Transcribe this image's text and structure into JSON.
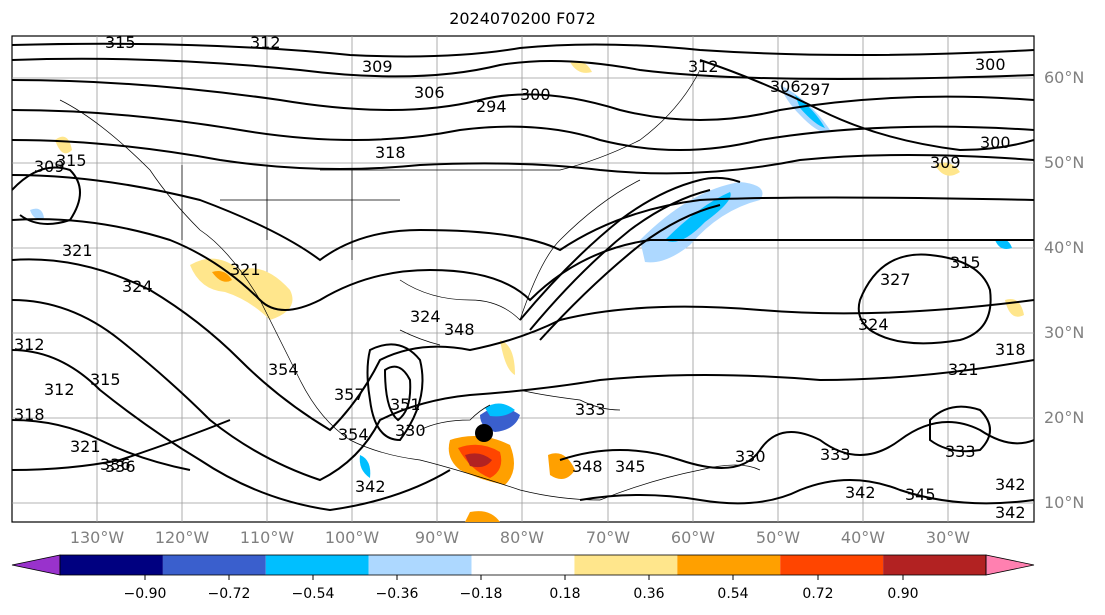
{
  "title": "2024070200 F072",
  "lat_labels": [
    "60°N",
    "50°N",
    "40°N",
    "30°N",
    "20°N",
    "10°N"
  ],
  "lon_labels": [
    "130°W",
    "120°W",
    "110°W",
    "100°W",
    "90°W",
    "80°W",
    "70°W",
    "60°W",
    "50°W",
    "40°W",
    "30°W"
  ],
  "contour_labels": [
    "315",
    "312",
    "309",
    "306",
    "294",
    "300",
    "312",
    "306",
    "297",
    "300",
    "309",
    "300",
    "309",
    "315",
    "318",
    "321",
    "324",
    "321",
    "324",
    "348",
    "354",
    "357",
    "351",
    "354",
    "333",
    "330",
    "336",
    "342",
    "345",
    "348",
    "330",
    "333",
    "342",
    "345",
    "333",
    "342",
    "327",
    "324",
    "315",
    "318",
    "321",
    "312",
    "312",
    "315",
    "318",
    "321",
    "336",
    "342"
  ],
  "colorbar": {
    "ticks": [
      "−0.90",
      "−0.72",
      "−0.54",
      "−0.36",
      "−0.18",
      "0.18",
      "0.36",
      "0.54",
      "0.72",
      "0.90"
    ],
    "colors": [
      "#9932cc",
      "#000080",
      "#3a5fcd",
      "#00bfff",
      "#add8ff",
      "#ffffff",
      "#ffe68c",
      "#ffa000",
      "#ff4500",
      "#b22222",
      "#ff80b0"
    ]
  },
  "storm_marker": "tropical-cyclone-position"
}
